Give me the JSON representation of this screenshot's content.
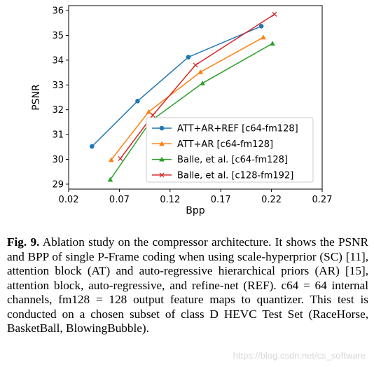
{
  "chart_data": {
    "type": "line",
    "xlabel": "Bpp",
    "ylabel": "PSNR",
    "xlim": [
      0.02,
      0.27
    ],
    "ylim": [
      28.8,
      36.2
    ],
    "xticks": [
      "0.02",
      "0.07",
      "0.12",
      "0.17",
      "0.22",
      "0.27"
    ],
    "yticks": [
      "29",
      "30",
      "31",
      "32",
      "33",
      "34",
      "35",
      "36"
    ],
    "xtick_values": [
      0.02,
      0.07,
      0.12,
      0.17,
      0.22,
      0.27
    ],
    "ytick_values": [
      29,
      30,
      31,
      32,
      33,
      34,
      35,
      36
    ],
    "legend_position": "lower-right",
    "grid": false,
    "series": [
      {
        "name": "ATT+AR+REF [c64-fm128]",
        "color": "#1f77b4",
        "marker": "circle",
        "x": [
          0.043,
          0.088,
          0.138,
          0.21
        ],
        "y": [
          30.52,
          32.35,
          34.12,
          35.37
        ]
      },
      {
        "name": "ATT+AR [c64-fm128]",
        "color": "#ff7f0e",
        "marker": "triangle",
        "x": [
          0.062,
          0.099,
          0.15,
          0.212
        ],
        "y": [
          29.98,
          31.92,
          33.52,
          34.92
        ]
      },
      {
        "name": "Balle, et al. [c64-fm128]",
        "color": "#2ca02c",
        "marker": "triangle",
        "x": [
          0.061,
          0.101,
          0.152,
          0.221
        ],
        "y": [
          29.18,
          31.55,
          33.07,
          34.67
        ]
      },
      {
        "name": "Balle, et al. [c128-fm192]",
        "color": "#d62728",
        "marker": "x",
        "x": [
          0.071,
          0.103,
          0.145,
          0.223
        ],
        "y": [
          30.03,
          31.78,
          33.8,
          35.85
        ]
      }
    ]
  },
  "caption": {
    "label": "Fig. 9.",
    "text": " Ablation study on the compressor architecture. It shows the PSNR and BPP of single P-Frame coding when using scale-hyperprior (SC) [11], attention block (AT) and auto-regressive hierarchical priors (AR) [15], attention block, auto-regressive, and refine-net (REF). c64 = 64 internal channels, fm128 = 128 output feature maps to quantizer. This test is conducted on a chosen subset of class D HEVC Test Set (RaceHorse, BasketBall, BlowingBubble)."
  },
  "watermark": "https://blog.csdn.net/cs_software"
}
